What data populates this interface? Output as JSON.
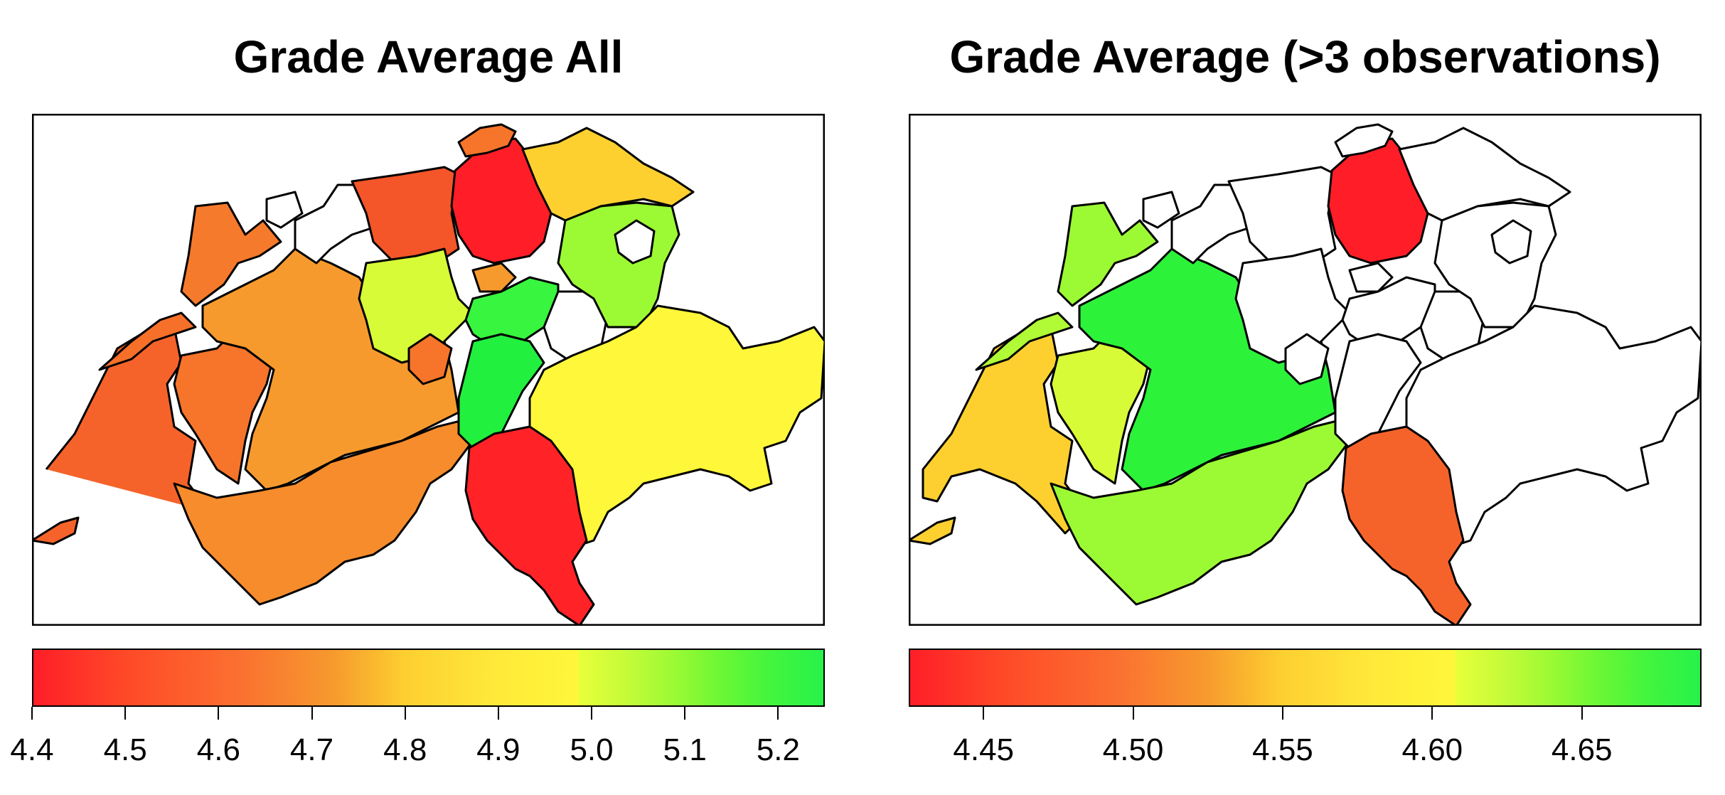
{
  "panels": [
    {
      "title": "Grade Average All",
      "scale_ticks": [
        "4.4",
        "4.5",
        "4.6",
        "4.7",
        "4.8",
        "4.9",
        "5.0",
        "5.1",
        "5.2"
      ],
      "scale_range": [
        4.4,
        5.25
      ],
      "colors": {
        "low": "#ff1e28",
        "mid": "#fff73a",
        "high": "#27f24a"
      }
    },
    {
      "title": "Grade Average (>3 observations)",
      "scale_ticks": [
        "4.45",
        "4.50",
        "4.55",
        "4.60",
        "4.65"
      ],
      "scale_range": [
        4.425,
        4.69
      ],
      "colors": {
        "low": "#ff1e28",
        "mid": "#fff73a",
        "high": "#27f24a",
        "no_data": "#ffffff"
      }
    }
  ]
}
